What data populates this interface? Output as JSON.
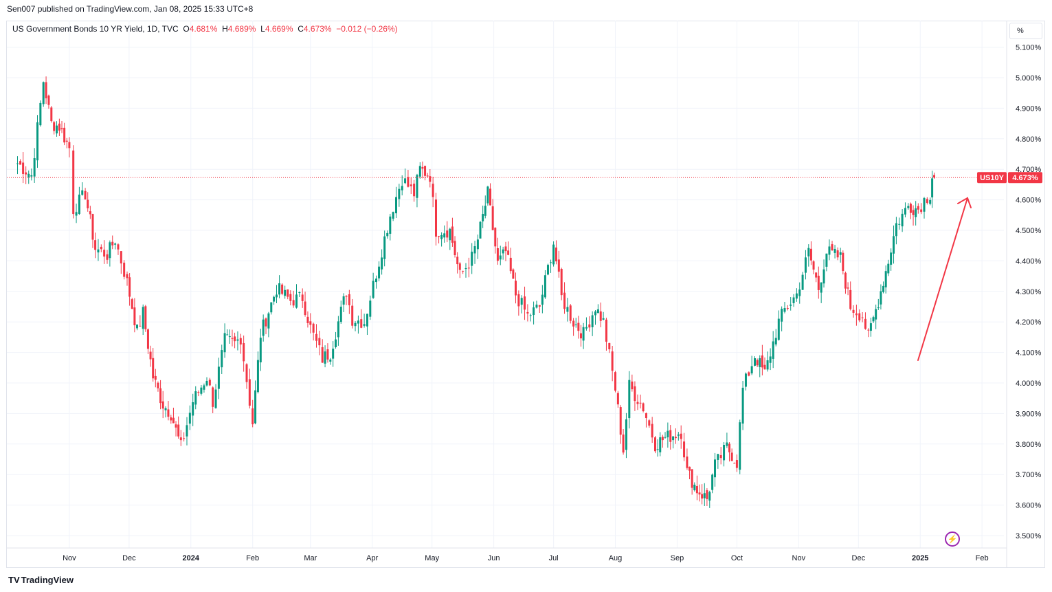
{
  "header": {
    "publish_line": "Sen007 published on TradingView.com, Jan 08, 2025 15:33 UTC+8"
  },
  "legend": {
    "symbol_line": "US Government Bonds 10 YR Yield, 1D, TVC",
    "open_label": "O",
    "open_value": "4.681%",
    "high_label": "H",
    "high_value": "4.689%",
    "low_label": "L",
    "low_value": "4.669%",
    "close_label": "C",
    "close_value": "4.673%",
    "change": "−0.012 (−0.26%)"
  },
  "price_axis": {
    "unit_label": "%"
  },
  "last_price": {
    "symbol_tag": "US10Y",
    "value_tag": "4.673%",
    "value": 4.673
  },
  "footer": {
    "brand": "TradingView",
    "brand_glyph": "TV"
  },
  "colors": {
    "up": "#089981",
    "down": "#f23645",
    "grid": "#f0f3fa",
    "arrow": "#f23645",
    "flash": "#9c27b0"
  },
  "icons": {
    "flash": "lightning-icon",
    "logo": "tradingview-logo-icon"
  },
  "chart_data": {
    "type": "candlestick",
    "title": "US Government Bonds 10 YR Yield, 1D, TVC",
    "ylim": [
      3.45,
      5.15
    ],
    "y_ticks": [
      "3.500%",
      "3.600%",
      "3.700%",
      "3.800%",
      "3.900%",
      "4.000%",
      "4.100%",
      "4.200%",
      "4.300%",
      "4.400%",
      "4.500%",
      "4.600%",
      "4.700%",
      "4.800%",
      "4.900%",
      "5.000%",
      "5.100%"
    ],
    "x_ticks": [
      {
        "label": "Nov",
        "date": "2023-11-01",
        "bold": false
      },
      {
        "label": "Dec",
        "date": "2023-12-01",
        "bold": false
      },
      {
        "label": "2024",
        "date": "2024-01-01",
        "bold": true
      },
      {
        "label": "Feb",
        "date": "2024-02-01",
        "bold": false
      },
      {
        "label": "Mar",
        "date": "2024-03-01",
        "bold": false
      },
      {
        "label": "Apr",
        "date": "2024-04-01",
        "bold": false
      },
      {
        "label": "May",
        "date": "2024-05-01",
        "bold": false
      },
      {
        "label": "Jun",
        "date": "2024-06-01",
        "bold": false
      },
      {
        "label": "Jul",
        "date": "2024-07-01",
        "bold": false
      },
      {
        "label": "Aug",
        "date": "2024-08-01",
        "bold": false
      },
      {
        "label": "Sep",
        "date": "2024-09-01",
        "bold": false
      },
      {
        "label": "Oct",
        "date": "2024-10-01",
        "bold": false
      },
      {
        "label": "Nov",
        "date": "2024-11-01",
        "bold": false
      },
      {
        "label": "Dec",
        "date": "2024-12-01",
        "bold": false
      },
      {
        "label": "2025",
        "date": "2025-01-01",
        "bold": true
      },
      {
        "label": "Feb",
        "date": "2025-02-01",
        "bold": false
      }
    ],
    "close_path": [
      [
        "2023-10-06",
        4.72
      ],
      [
        "2023-10-13",
        4.68
      ],
      [
        "2023-10-19",
        4.99
      ],
      [
        "2023-10-23",
        4.85
      ],
      [
        "2023-10-27",
        4.84
      ],
      [
        "2023-11-01",
        4.77
      ],
      [
        "2023-11-03",
        4.57
      ],
      [
        "2023-11-09",
        4.62
      ],
      [
        "2023-11-14",
        4.44
      ],
      [
        "2023-11-20",
        4.42
      ],
      [
        "2023-11-24",
        4.47
      ],
      [
        "2023-11-30",
        4.33
      ],
      [
        "2023-12-05",
        4.17
      ],
      [
        "2023-12-08",
        4.23
      ],
      [
        "2023-12-13",
        4.02
      ],
      [
        "2023-12-18",
        3.93
      ],
      [
        "2023-12-22",
        3.9
      ],
      [
        "2023-12-27",
        3.79
      ],
      [
        "2024-01-02",
        3.94
      ],
      [
        "2024-01-09",
        4.02
      ],
      [
        "2024-01-12",
        3.94
      ],
      [
        "2024-01-18",
        4.14
      ],
      [
        "2024-01-23",
        4.13
      ],
      [
        "2024-01-26",
        4.15
      ],
      [
        "2024-02-01",
        3.87
      ],
      [
        "2024-02-05",
        4.16
      ],
      [
        "2024-02-13",
        4.31
      ],
      [
        "2024-02-20",
        4.27
      ],
      [
        "2024-02-26",
        4.28
      ],
      [
        "2024-03-01",
        4.18
      ],
      [
        "2024-03-07",
        4.08
      ],
      [
        "2024-03-11",
        4.1
      ],
      [
        "2024-03-19",
        4.3
      ],
      [
        "2024-03-22",
        4.21
      ],
      [
        "2024-03-28",
        4.2
      ],
      [
        "2024-04-03",
        4.36
      ],
      [
        "2024-04-10",
        4.55
      ],
      [
        "2024-04-16",
        4.67
      ],
      [
        "2024-04-22",
        4.62
      ],
      [
        "2024-04-25",
        4.7
      ],
      [
        "2024-04-30",
        4.68
      ],
      [
        "2024-05-03",
        4.5
      ],
      [
        "2024-05-10",
        4.5
      ],
      [
        "2024-05-15",
        4.35
      ],
      [
        "2024-05-21",
        4.41
      ],
      [
        "2024-05-24",
        4.47
      ],
      [
        "2024-05-29",
        4.62
      ],
      [
        "2024-06-03",
        4.39
      ],
      [
        "2024-06-07",
        4.43
      ],
      [
        "2024-06-12",
        4.29
      ],
      [
        "2024-06-18",
        4.22
      ],
      [
        "2024-06-24",
        4.25
      ],
      [
        "2024-07-01",
        4.46
      ],
      [
        "2024-07-05",
        4.28
      ],
      [
        "2024-07-11",
        4.2
      ],
      [
        "2024-07-16",
        4.16
      ],
      [
        "2024-07-22",
        4.25
      ],
      [
        "2024-07-26",
        4.2
      ],
      [
        "2024-08-01",
        3.98
      ],
      [
        "2024-08-05",
        3.78
      ],
      [
        "2024-08-08",
        3.99
      ],
      [
        "2024-08-15",
        3.92
      ],
      [
        "2024-08-21",
        3.8
      ],
      [
        "2024-08-26",
        3.82
      ],
      [
        "2024-09-03",
        3.84
      ],
      [
        "2024-09-06",
        3.71
      ],
      [
        "2024-09-11",
        3.65
      ],
      [
        "2024-09-16",
        3.62
      ],
      [
        "2024-09-20",
        3.73
      ],
      [
        "2024-09-26",
        3.79
      ],
      [
        "2024-10-01",
        3.74
      ],
      [
        "2024-10-04",
        3.98
      ],
      [
        "2024-10-10",
        4.09
      ],
      [
        "2024-10-15",
        4.03
      ],
      [
        "2024-10-22",
        4.2
      ],
      [
        "2024-10-25",
        4.24
      ],
      [
        "2024-10-31",
        4.29
      ],
      [
        "2024-11-06",
        4.43
      ],
      [
        "2024-11-11",
        4.31
      ],
      [
        "2024-11-15",
        4.43
      ],
      [
        "2024-11-22",
        4.41
      ],
      [
        "2024-11-27",
        4.25
      ],
      [
        "2024-12-03",
        4.22
      ],
      [
        "2024-12-06",
        4.15
      ],
      [
        "2024-12-11",
        4.27
      ],
      [
        "2024-12-16",
        4.4
      ],
      [
        "2024-12-20",
        4.52
      ],
      [
        "2024-12-26",
        4.58
      ],
      [
        "2024-12-31",
        4.57
      ],
      [
        "2025-01-03",
        4.6
      ],
      [
        "2025-01-06",
        4.62
      ],
      [
        "2025-01-07",
        4.68
      ],
      [
        "2025-01-08",
        4.673
      ]
    ]
  }
}
